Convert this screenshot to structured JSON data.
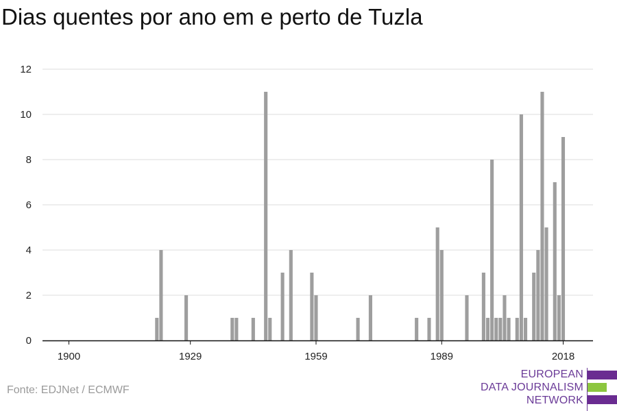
{
  "title": "Dias quentes por ano em e perto de Tuzla",
  "source": "Fonte: EDJNet / ECMWF",
  "logo": {
    "lines": [
      "EUROPEAN",
      "DATA JOURNALISM",
      "NETWORK"
    ],
    "colors": {
      "purple": "#6a2c91",
      "green": "#8cc63f"
    }
  },
  "chart_data": {
    "type": "bar",
    "title": "Dias quentes por ano em e perto de Tuzla",
    "xlabel": "",
    "ylabel": "",
    "xlim": [
      1900,
      2018
    ],
    "ylim": [
      0,
      12
    ],
    "x_ticks": [
      1900,
      1929,
      1959,
      1989,
      2018
    ],
    "y_ticks": [
      0,
      2,
      4,
      6,
      8,
      10,
      12
    ],
    "grid": "horizontal",
    "bar_color": "#9e9e9e",
    "points": [
      {
        "x": 1921,
        "y": 1
      },
      {
        "x": 1922,
        "y": 4
      },
      {
        "x": 1928,
        "y": 2
      },
      {
        "x": 1939,
        "y": 1
      },
      {
        "x": 1940,
        "y": 1
      },
      {
        "x": 1944,
        "y": 1
      },
      {
        "x": 1947,
        "y": 11
      },
      {
        "x": 1948,
        "y": 1
      },
      {
        "x": 1951,
        "y": 3
      },
      {
        "x": 1953,
        "y": 4
      },
      {
        "x": 1958,
        "y": 3
      },
      {
        "x": 1959,
        "y": 2
      },
      {
        "x": 1969,
        "y": 1
      },
      {
        "x": 1972,
        "y": 2
      },
      {
        "x": 1983,
        "y": 1
      },
      {
        "x": 1986,
        "y": 1
      },
      {
        "x": 1988,
        "y": 5
      },
      {
        "x": 1989,
        "y": 4
      },
      {
        "x": 1995,
        "y": 2
      },
      {
        "x": 1999,
        "y": 3
      },
      {
        "x": 2000,
        "y": 1
      },
      {
        "x": 2001,
        "y": 8
      },
      {
        "x": 2002,
        "y": 1
      },
      {
        "x": 2003,
        "y": 1
      },
      {
        "x": 2004,
        "y": 2
      },
      {
        "x": 2005,
        "y": 1
      },
      {
        "x": 2007,
        "y": 1
      },
      {
        "x": 2008,
        "y": 10
      },
      {
        "x": 2009,
        "y": 1
      },
      {
        "x": 2011,
        "y": 3
      },
      {
        "x": 2012,
        "y": 4
      },
      {
        "x": 2013,
        "y": 11
      },
      {
        "x": 2014,
        "y": 5
      },
      {
        "x": 2016,
        "y": 7
      },
      {
        "x": 2017,
        "y": 2
      },
      {
        "x": 2018,
        "y": 9
      }
    ]
  }
}
